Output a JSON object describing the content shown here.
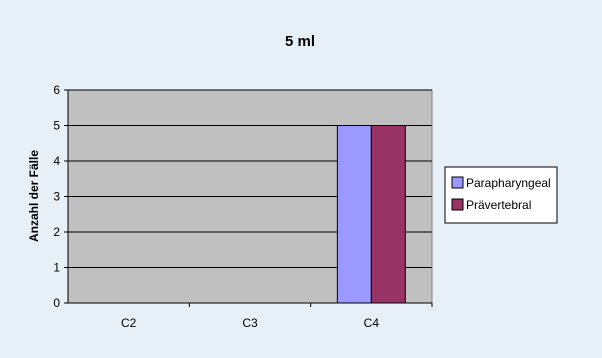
{
  "chart_data": {
    "type": "bar",
    "title": "5 ml",
    "xlabel": "",
    "ylabel": "Anzahl der Fälle",
    "categories": [
      "C2",
      "C3",
      "C4"
    ],
    "series": [
      {
        "name": "Parapharyngeal",
        "values": [
          0,
          0,
          5
        ],
        "color": "#9999ff"
      },
      {
        "name": "Prävertebral",
        "values": [
          0,
          0,
          5
        ],
        "color": "#993366"
      }
    ],
    "ylim": [
      0,
      6
    ],
    "yticks": [
      0,
      1,
      2,
      3,
      4,
      5,
      6
    ],
    "grid": true,
    "plot_background": "#c0c0c0",
    "legend_position": "right"
  }
}
